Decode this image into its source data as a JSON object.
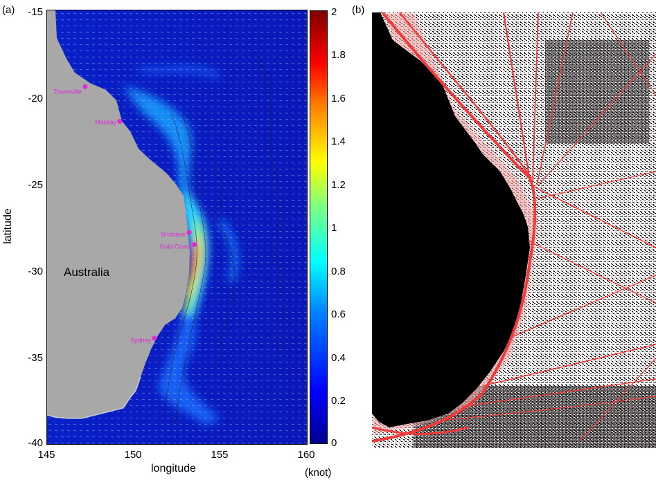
{
  "panel_a": {
    "label": "(a)",
    "xlabel": "longitude",
    "ylabel": "latitude",
    "land_label": "Australia",
    "x_ticks": [
      "145",
      "150",
      "155",
      "160"
    ],
    "y_ticks": [
      "-15",
      "-20",
      "-25",
      "-30",
      "-35",
      "-40"
    ],
    "colorbar": {
      "ticks": [
        "2",
        "1.8",
        "1.6",
        "1.4",
        "1.2",
        "1",
        "0.8",
        "0.6",
        "0.4",
        "0.2",
        "0"
      ],
      "unit": "(knot)",
      "range": [
        0,
        2
      ]
    },
    "cities": [
      {
        "name": "Townsville",
        "lon": 147.2,
        "lat": -19.4
      },
      {
        "name": "Mackay",
        "lon": 149.2,
        "lat": -21.4
      },
      {
        "name": "Brisbane",
        "lon": 153.2,
        "lat": -27.8
      },
      {
        "name": "Gold Coast",
        "lon": 153.5,
        "lat": -28.5
      },
      {
        "name": "Sydney",
        "lon": 151.2,
        "lat": -33.9
      }
    ],
    "colors": {
      "land": "#a8a8a8",
      "ocean_low": "#0a14c8",
      "city_marker": "#e02ad8"
    }
  },
  "panel_b": {
    "label": "(b)",
    "colors": {
      "land": "#000000",
      "track": "#f23a3a",
      "track_light": "#f7a0a0"
    }
  }
}
